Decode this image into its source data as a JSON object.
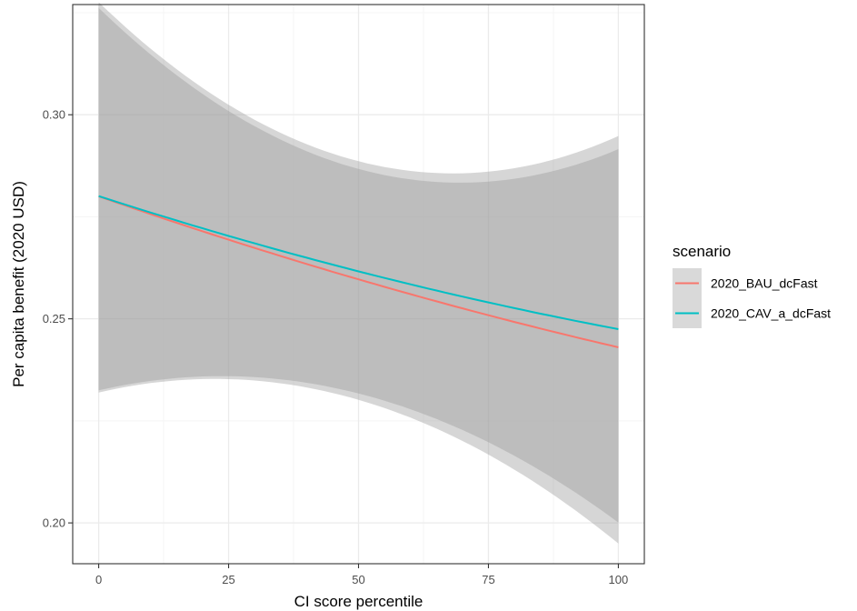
{
  "chart_data": {
    "type": "line",
    "title": "",
    "xlabel": "CI score percentile",
    "ylabel": "Per capita benefit (2020 USD)",
    "xlim": [
      -5,
      105
    ],
    "ylim": [
      0.19,
      0.327
    ],
    "x_ticks": [
      0,
      25,
      50,
      75,
      100
    ],
    "x_tick_labels": [
      "0",
      "25",
      "50",
      "75",
      "100"
    ],
    "y_ticks": [
      0.2,
      0.25,
      0.3
    ],
    "y_tick_labels": [
      "0.20",
      "0.25",
      "0.30"
    ],
    "grid": true,
    "legend_position": "right",
    "legend_title": "scenario",
    "series": [
      {
        "name": "2020_BAU_dcFast",
        "color": "#F8766D",
        "x": [
          0,
          25,
          50,
          75,
          100
        ],
        "y": [
          0.28,
          0.2695,
          0.2595,
          0.251,
          0.243
        ],
        "ci_lower": [
          0.2315,
          0.2365,
          0.229,
          0.217,
          0.195
        ],
        "ci_upper": [
          0.327,
          0.3035,
          0.289,
          0.2845,
          0.2955
        ]
      },
      {
        "name": "2020_CAV_a_dcFast",
        "color": "#00BFC4",
        "x": [
          0,
          25,
          50,
          75,
          100
        ],
        "y": [
          0.28,
          0.2705,
          0.2615,
          0.254,
          0.2475
        ],
        "ci_lower": [
          0.2325,
          0.236,
          0.2315,
          0.22,
          0.2
        ],
        "ci_upper": [
          0.326,
          0.3015,
          0.286,
          0.284,
          0.2915
        ]
      }
    ]
  },
  "colors": {
    "ribbon": "#999999",
    "panel_border": "#333333",
    "grid_major": "#ebebeb",
    "grid_minor": "#f5f5f5",
    "legend_key_bg": "#d9d9d9"
  }
}
